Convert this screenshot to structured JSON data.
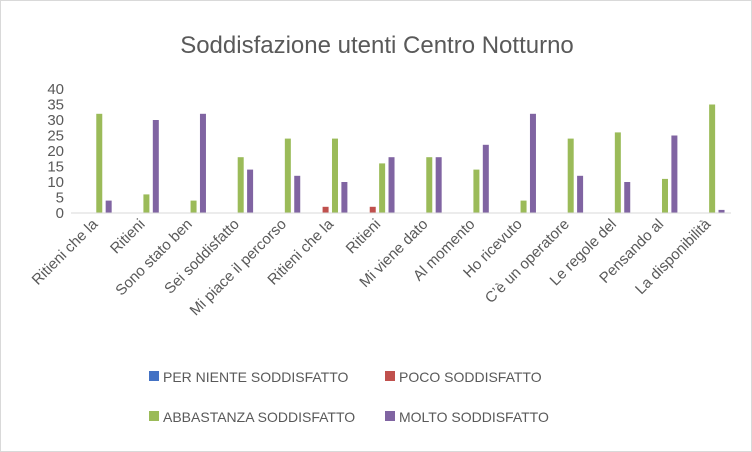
{
  "chart_data": {
    "type": "bar",
    "title": "Soddisfazione utenti Centro Notturno",
    "xlabel": "",
    "ylabel": "",
    "ylim": [
      0,
      40
    ],
    "yticks": [
      0,
      5,
      10,
      15,
      20,
      25,
      30,
      35,
      40
    ],
    "grid": false,
    "legend_position": "bottom",
    "categories": [
      "Ritieni che la",
      "Ritieni",
      "Sono stato ben",
      "Sei soddisfatto",
      "Mi piace il percorso",
      "Ritieni che la",
      "Ritieni",
      "Mi viene dato",
      "Al momento",
      "Ho ricevuto",
      "C’è un operatore",
      "Le regole del",
      "Pensando al",
      "La disponibilità"
    ],
    "series": [
      {
        "name": "PER NIENTE SODDISFATTO",
        "color": "#4472c4",
        "values": [
          0,
          0,
          0,
          0,
          0,
          0,
          0,
          0,
          0,
          0,
          0,
          0,
          0,
          0
        ]
      },
      {
        "name": "POCO SODDISFATTO",
        "color": "#c0504d",
        "values": [
          0,
          0,
          0,
          0,
          0,
          2,
          2,
          0,
          0,
          0,
          0,
          0,
          0,
          0
        ]
      },
      {
        "name": "ABBASTANZA SODDISFATTO",
        "color": "#9bbb59",
        "values": [
          32,
          6,
          4,
          18,
          24,
          24,
          16,
          18,
          14,
          4,
          24,
          26,
          11,
          35
        ]
      },
      {
        "name": "MOLTO SODDISFATTO",
        "color": "#8064a2",
        "values": [
          4,
          30,
          32,
          14,
          12,
          10,
          18,
          18,
          22,
          32,
          12,
          10,
          25,
          1
        ]
      }
    ]
  }
}
